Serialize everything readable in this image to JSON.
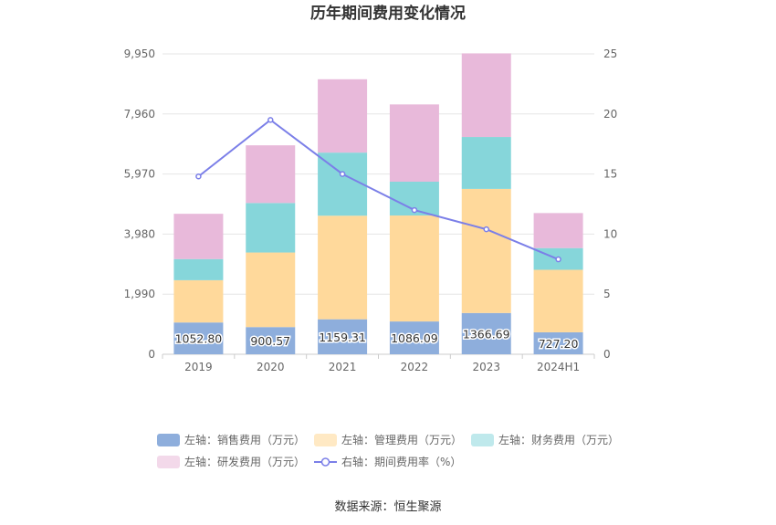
{
  "chart_data": {
    "type": "bar",
    "title": "历年期间费用变化情况",
    "categories": [
      "2019",
      "2020",
      "2021",
      "2022",
      "2023",
      "2024H1"
    ],
    "left_axis": {
      "ticks": [
        "0",
        "1,990",
        "3,980",
        "5,970",
        "7,960",
        "9,950"
      ],
      "ylim": [
        0,
        9950
      ]
    },
    "right_axis": {
      "ticks": [
        "0",
        "5",
        "10",
        "15",
        "20",
        "25"
      ],
      "ylim": [
        0,
        25
      ]
    },
    "series": [
      {
        "name": "左轴：销售费用（万元）",
        "stack": "left",
        "color": "#8eaedc",
        "values": [
          1052.8,
          900.57,
          1159.31,
          1086.09,
          1366.69,
          727.2
        ],
        "labels": [
          "1052.80",
          "900.57",
          "1159.31",
          "1086.09",
          "1366.69",
          "727.20"
        ]
      },
      {
        "name": "左轴：管理费用（万元）",
        "stack": "left",
        "color": "#ffd99b",
        "values": [
          1400,
          2470,
          3430,
          3510,
          4110,
          2070
        ]
      },
      {
        "name": "左轴：财务费用（万元）",
        "stack": "left",
        "color": "#86d6da",
        "values": [
          700,
          1640,
          2090,
          1120,
          1720,
          720
        ]
      },
      {
        "name": "左轴：研发费用（万元）",
        "stack": "left",
        "color": "#e8b9da",
        "values": [
          1500,
          1910,
          2430,
          2560,
          2770,
          1160
        ]
      },
      {
        "name": "右轴：期间费用率（%）",
        "type": "line",
        "axis": "right",
        "color": "#7b7fe8",
        "values": [
          14.8,
          19.5,
          15.0,
          12.0,
          10.4,
          7.9
        ]
      }
    ],
    "legend_position": "bottom",
    "grid": true
  },
  "source": "数据来源：恒生聚源"
}
